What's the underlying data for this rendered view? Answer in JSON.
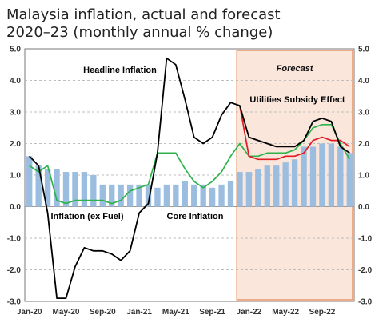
{
  "chart_data": {
    "type": "line",
    "title": "Malaysia inflation, actual and forecast",
    "subtitle": "2020–23 (monthly annual % change)",
    "ylim": [
      -3.0,
      5.0
    ],
    "yticks": [
      "5.0",
      "4.0",
      "3.0",
      "2.0",
      "1.0",
      "0.0",
      "-1.0",
      "-2.0",
      "-3.0"
    ],
    "ytick_values": [
      5,
      4,
      3,
      2,
      1,
      0,
      -1,
      -2,
      -3
    ],
    "xtick_labels": [
      "Jan-20",
      "May-20",
      "Sep-20",
      "Jan-21",
      "May-21",
      "Sep-21",
      "Jan-22",
      "May-22",
      "Sep-22"
    ],
    "xtick_index": [
      0,
      4,
      8,
      12,
      16,
      20,
      24,
      28,
      32
    ],
    "n_months": 36,
    "forecast": {
      "label": "Forecast",
      "start_index": 23,
      "end_index": 35
    },
    "grid": "horizontal dashed",
    "series": [
      {
        "name": "Core Inflation",
        "kind": "bar",
        "color": "#9bbde0",
        "values": [
          1.6,
          1.3,
          1.2,
          1.2,
          1.1,
          1.1,
          1.1,
          1.0,
          0.7,
          0.7,
          0.7,
          0.7,
          0.7,
          0.7,
          0.6,
          0.7,
          0.7,
          0.8,
          0.7,
          0.7,
          0.6,
          0.7,
          0.8,
          1.1,
          1.1,
          1.2,
          1.3,
          1.3,
          1.4,
          1.5,
          1.9,
          1.9,
          2.0,
          2.0,
          1.9,
          1.7
        ]
      },
      {
        "name": "Headline Inflation",
        "kind": "line",
        "color": "#000000",
        "values": [
          1.6,
          1.3,
          -0.2,
          -2.9,
          -2.9,
          -1.9,
          -1.3,
          -1.4,
          -1.4,
          -1.5,
          -1.7,
          -1.4,
          -0.2,
          0.1,
          1.7,
          4.7,
          4.5,
          3.4,
          2.2,
          2.0,
          2.2,
          2.9,
          3.3,
          3.2,
          2.2,
          2.1,
          2.0,
          1.9,
          1.9,
          1.9,
          2.1,
          2.7,
          2.8,
          2.7,
          1.9,
          1.7
        ]
      },
      {
        "name": "Inflation (ex Fuel)",
        "kind": "line",
        "color": "#2db34a",
        "values": [
          1.3,
          1.1,
          1.3,
          0.2,
          0.1,
          0.2,
          0.2,
          0.2,
          0.2,
          0.1,
          0.2,
          0.5,
          0.6,
          0.7,
          1.7,
          1.7,
          1.7,
          1.2,
          0.8,
          0.6,
          0.8,
          1.1,
          1.6,
          2.0,
          1.6,
          1.6,
          1.7,
          1.7,
          1.7,
          1.8,
          2.1,
          2.5,
          2.6,
          2.6,
          2.0,
          1.5
        ]
      },
      {
        "name": "Utilities Subsidy Effect",
        "kind": "line",
        "color": "#e31b23",
        "start_index": 23,
        "values": [
          3.2,
          1.6,
          1.5,
          1.5,
          1.5,
          1.6,
          1.6,
          1.7,
          2.1,
          2.2,
          2.1,
          2.1,
          1.9
        ]
      }
    ],
    "annotations": [
      {
        "text": "Headline Inflation",
        "color": "#000000"
      },
      {
        "text": "Utilities Subsidy Effect",
        "color": "#e31b23"
      },
      {
        "text": "Inflation (ex Fuel)",
        "color": "#2db34a"
      },
      {
        "text": "Core Inflation",
        "color": "#3b7bbf"
      }
    ]
  }
}
